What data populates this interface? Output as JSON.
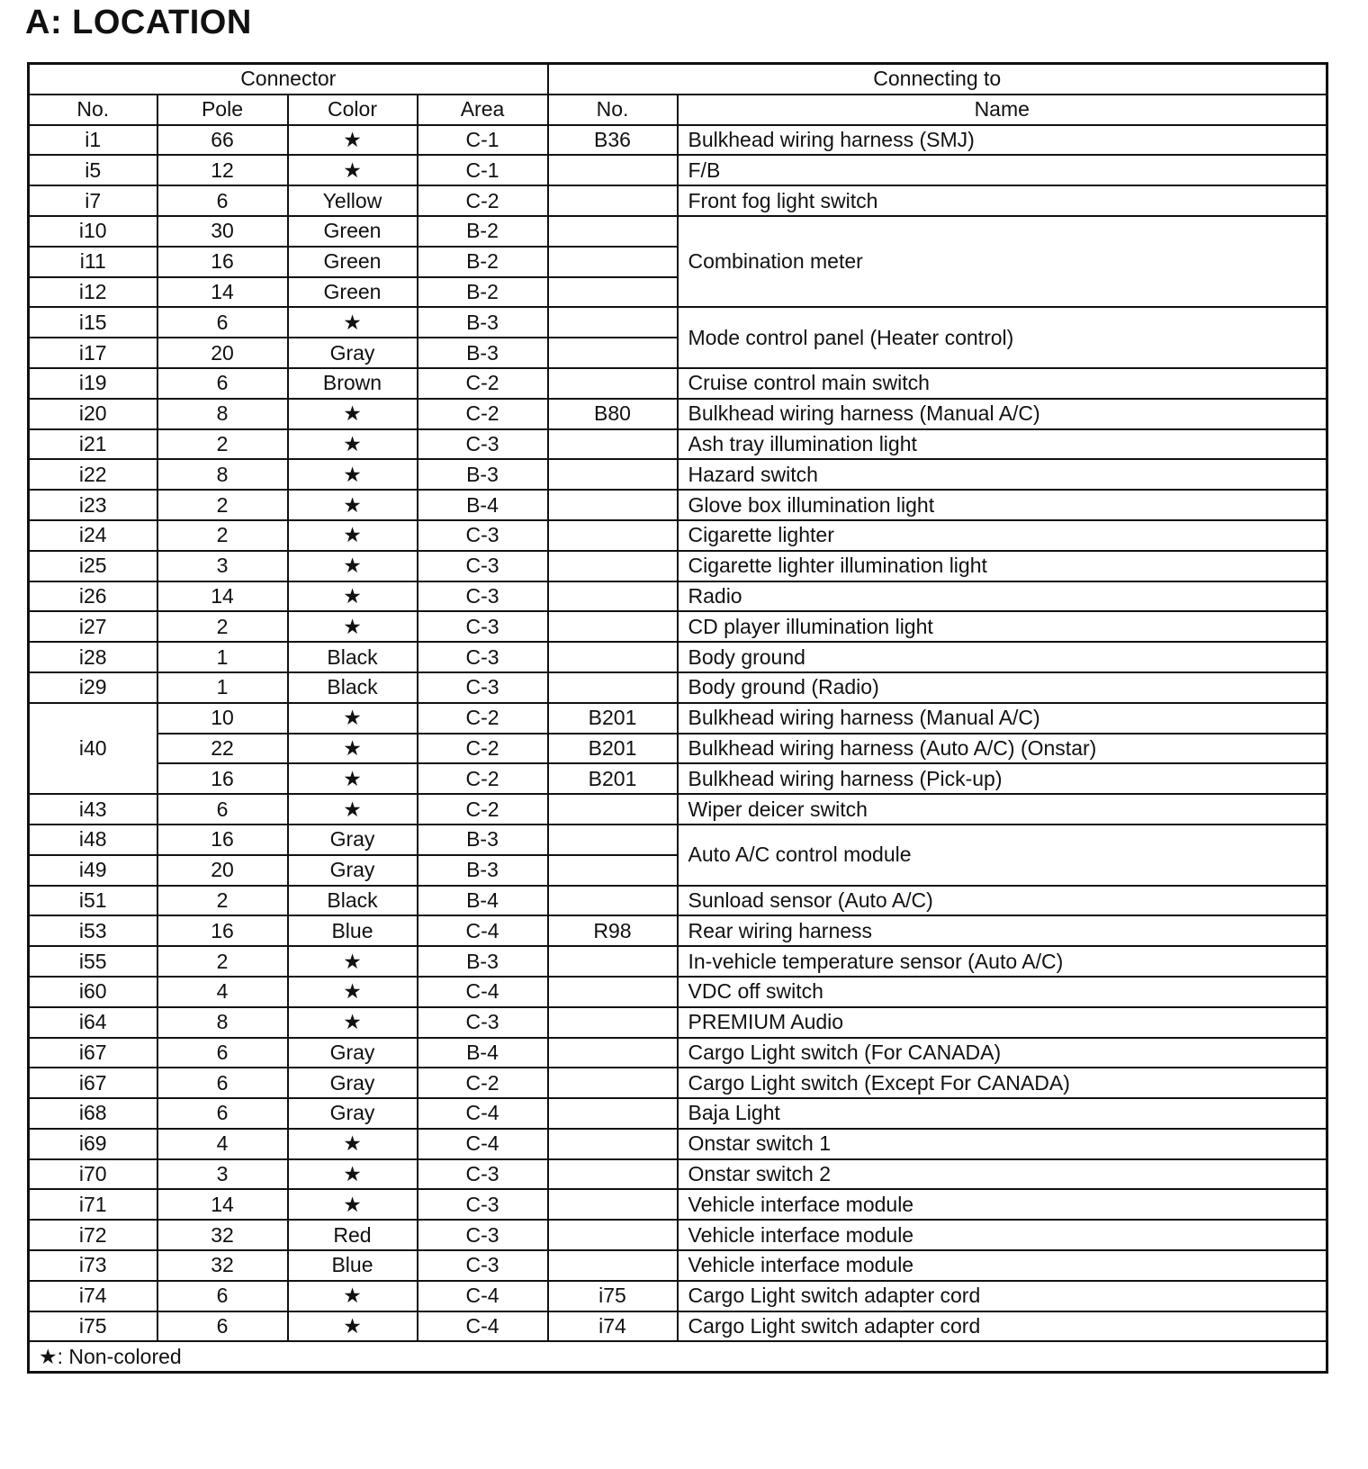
{
  "title": "A:  LOCATION",
  "header": {
    "group_connector": "Connector",
    "group_connecting_to": "Connecting to",
    "columns": [
      "No.",
      "Pole",
      "Color",
      "Area",
      "No.",
      "Name"
    ]
  },
  "rows": [
    {
      "no": "i1",
      "pole": "66",
      "color": "★",
      "area": "C-1",
      "conn_no": "B36",
      "name": "Bulkhead wiring harness (SMJ)"
    },
    {
      "no": "i5",
      "pole": "12",
      "color": "★",
      "area": "C-1",
      "conn_no": "",
      "name": "F/B"
    },
    {
      "no": "i7",
      "pole": "6",
      "color": "Yellow",
      "area": "C-2",
      "conn_no": "",
      "name": "Front fog light switch"
    },
    {
      "no": "i10",
      "pole": "30",
      "color": "Green",
      "area": "B-2",
      "conn_no": "",
      "name": "Combination meter"
    },
    {
      "no": "i11",
      "pole": "16",
      "color": "Green",
      "area": "B-2",
      "conn_no": ""
    },
    {
      "no": "i12",
      "pole": "14",
      "color": "Green",
      "area": "B-2",
      "conn_no": ""
    },
    {
      "no": "i15",
      "pole": "6",
      "color": "★",
      "area": "B-3",
      "conn_no": "",
      "name": "Mode control panel (Heater control)"
    },
    {
      "no": "i17",
      "pole": "20",
      "color": "Gray",
      "area": "B-3",
      "conn_no": ""
    },
    {
      "no": "i19",
      "pole": "6",
      "color": "Brown",
      "area": "C-2",
      "conn_no": "",
      "name": "Cruise control main switch"
    },
    {
      "no": "i20",
      "pole": "8",
      "color": "★",
      "area": "C-2",
      "conn_no": "B80",
      "name": "Bulkhead wiring harness (Manual A/C)"
    },
    {
      "no": "i21",
      "pole": "2",
      "color": "★",
      "area": "C-3",
      "conn_no": "",
      "name": "Ash tray illumination light"
    },
    {
      "no": "i22",
      "pole": "8",
      "color": "★",
      "area": "B-3",
      "conn_no": "",
      "name": "Hazard switch"
    },
    {
      "no": "i23",
      "pole": "2",
      "color": "★",
      "area": "B-4",
      "conn_no": "",
      "name": "Glove box illumination light"
    },
    {
      "no": "i24",
      "pole": "2",
      "color": "★",
      "area": "C-3",
      "conn_no": "",
      "name": "Cigarette lighter"
    },
    {
      "no": "i25",
      "pole": "3",
      "color": "★",
      "area": "C-3",
      "conn_no": "",
      "name": "Cigarette lighter illumination light"
    },
    {
      "no": "i26",
      "pole": "14",
      "color": "★",
      "area": "C-3",
      "conn_no": "",
      "name": "Radio"
    },
    {
      "no": "i27",
      "pole": "2",
      "color": "★",
      "area": "C-3",
      "conn_no": "",
      "name": "CD player illumination light"
    },
    {
      "no": "i28",
      "pole": "1",
      "color": "Black",
      "area": "C-3",
      "conn_no": "",
      "name": "Body ground"
    },
    {
      "no": "i29",
      "pole": "1",
      "color": "Black",
      "area": "C-3",
      "conn_no": "",
      "name": "Body ground (Radio)"
    },
    {
      "no": "i40",
      "pole": "10",
      "color": "★",
      "area": "C-2",
      "conn_no": "B201",
      "name": "Bulkhead wiring harness (Manual A/C)"
    },
    {
      "pole": "22",
      "color": "★",
      "area": "C-2",
      "conn_no": "B201",
      "name": "Bulkhead wiring harness (Auto A/C) (Onstar)"
    },
    {
      "pole": "16",
      "color": "★",
      "area": "C-2",
      "conn_no": "B201",
      "name": "Bulkhead wiring harness (Pick-up)"
    },
    {
      "no": "i43",
      "pole": "6",
      "color": "★",
      "area": "C-2",
      "conn_no": "",
      "name": "Wiper deicer switch"
    },
    {
      "no": "i48",
      "pole": "16",
      "color": "Gray",
      "area": "B-3",
      "conn_no": "",
      "name": "Auto A/C control module"
    },
    {
      "no": "i49",
      "pole": "20",
      "color": "Gray",
      "area": "B-3",
      "conn_no": ""
    },
    {
      "no": "i51",
      "pole": "2",
      "color": "Black",
      "area": "B-4",
      "conn_no": "",
      "name": "Sunload sensor (Auto A/C)"
    },
    {
      "no": "i53",
      "pole": "16",
      "color": "Blue",
      "area": "C-4",
      "conn_no": "R98",
      "name": "Rear wiring harness"
    },
    {
      "no": "i55",
      "pole": "2",
      "color": "★",
      "area": "B-3",
      "conn_no": "",
      "name": "In-vehicle temperature sensor (Auto A/C)"
    },
    {
      "no": "i60",
      "pole": "4",
      "color": "★",
      "area": "C-4",
      "conn_no": "",
      "name": "VDC off switch"
    },
    {
      "no": "i64",
      "pole": "8",
      "color": "★",
      "area": "C-3",
      "conn_no": "",
      "name": "PREMIUM Audio"
    },
    {
      "no": "i67",
      "pole": "6",
      "color": "Gray",
      "area": "B-4",
      "conn_no": "",
      "name": "Cargo Light switch (For CANADA)"
    },
    {
      "no": "i67",
      "pole": "6",
      "color": "Gray",
      "area": "C-2",
      "conn_no": "",
      "name": "Cargo Light switch (Except For CANADA)"
    },
    {
      "no": "i68",
      "pole": "6",
      "color": "Gray",
      "area": "C-4",
      "conn_no": "",
      "name": "Baja Light"
    },
    {
      "no": "i69",
      "pole": "4",
      "color": "★",
      "area": "C-4",
      "conn_no": "",
      "name": "Onstar switch 1"
    },
    {
      "no": "i70",
      "pole": "3",
      "color": "★",
      "area": "C-3",
      "conn_no": "",
      "name": "Onstar switch 2"
    },
    {
      "no": "i71",
      "pole": "14",
      "color": "★",
      "area": "C-3",
      "conn_no": "",
      "name": "Vehicle interface module"
    },
    {
      "no": "i72",
      "pole": "32",
      "color": "Red",
      "area": "C-3",
      "conn_no": "",
      "name": "Vehicle interface module"
    },
    {
      "no": "i73",
      "pole": "32",
      "color": "Blue",
      "area": "C-3",
      "conn_no": "",
      "name": "Vehicle interface module"
    },
    {
      "no": "i74",
      "pole": "6",
      "color": "★",
      "area": "C-4",
      "conn_no": "i75",
      "name": "Cargo Light switch adapter cord"
    },
    {
      "no": "i75",
      "pole": "6",
      "color": "★",
      "area": "C-4",
      "conn_no": "i74",
      "name": "Cargo Light switch adapter cord"
    }
  ],
  "footnote": "★: Non-colored"
}
